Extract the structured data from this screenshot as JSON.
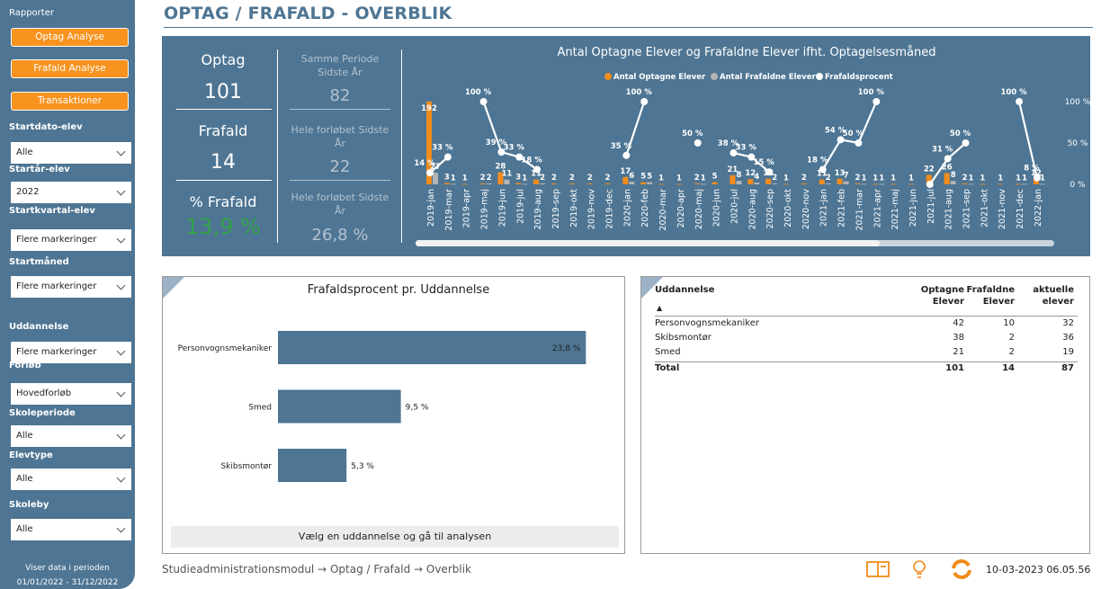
{
  "sidebar": {
    "heading": "Rapporter",
    "buttons": [
      "Optag Analyse",
      "Frafald Analyse",
      "Transaktioner"
    ],
    "filters": [
      {
        "label": "Startdato-elev",
        "value": "Alle"
      },
      {
        "label": "Startår-elev",
        "value": "2022"
      },
      {
        "label": "Startkvartal-elev",
        "value": "Flere markeringer"
      },
      {
        "label": "Startmåned",
        "value": "Flere markeringer"
      },
      {
        "label": "Uddannelse",
        "value": "Flere markeringer"
      },
      {
        "label": "Forløb",
        "value": "Hovedforløb"
      },
      {
        "label": "Skoleperiode",
        "value": "Alle"
      },
      {
        "label": "Elevtype",
        "value": "Alle"
      },
      {
        "label": "Skoleby",
        "value": "Alle"
      }
    ],
    "period_label": "Viser data i perioden",
    "period": "01/01/2022 - 31/12/2022"
  },
  "header": {
    "title": "OPTAG / FRAFALD - OVERBLIK"
  },
  "kpis": [
    {
      "label": "Optag",
      "value": 101
    },
    {
      "label": "Frafald",
      "value": 14
    },
    {
      "label": "% Frafald",
      "value": 13.9,
      "value_label": "13,9 %"
    }
  ],
  "comparisons": [
    {
      "label": "Samme Periode Sidste År",
      "value": 82
    },
    {
      "label": "Hele forløbet Sidste År",
      "value": 22
    },
    {
      "label": "Hele forløbet Sidste År",
      "value": 26.8,
      "value_label": "26,8 %"
    }
  ],
  "chart_data": [
    {
      "type": "combo",
      "title": "Antal Optagne Elever og Frafaldne Elever ifht. Optagelsesmåned",
      "categories": [
        "2019-jan",
        "2019-mar",
        "2019-apr",
        "2019-maj",
        "2019-jun",
        "2019-jul",
        "2019-aug",
        "2019-sep",
        "2019-okt",
        "2019-nov",
        "2019-dec",
        "2020-jan",
        "2020-feb",
        "2020-mar",
        "2020-apr",
        "2020-maj",
        "2020-jun",
        "2020-jul",
        "2020-aug",
        "2020-sep",
        "2020-okt",
        "2020-nov",
        "2021-jan",
        "2021-feb",
        "2021-mar",
        "2021-apr",
        "2021-maj",
        "2021-jun",
        "2021-jul",
        "2021-aug",
        "2021-sep",
        "2021-okt",
        "2021-nov",
        "2021-dec",
        "2022-jan"
      ],
      "series": [
        {
          "name": "Antal Optagne Elever",
          "color": "#f28c1c",
          "values": [
            192,
            3,
            1,
            2,
            28,
            3,
            11,
            2,
            2,
            2,
            2,
            17,
            5,
            1,
            1,
            2,
            5,
            21,
            12,
            13,
            1,
            2,
            11,
            13,
            2,
            1,
            1,
            1,
            22,
            26,
            2,
            1,
            1,
            1,
            12
          ]
        },
        {
          "name": "Antal Frafaldne Elever",
          "color": "#b4b4b4",
          "values": [
            27,
            1,
            null,
            2,
            11,
            1,
            2,
            null,
            null,
            null,
            null,
            6,
            5,
            null,
            null,
            1,
            null,
            8,
            4,
            2,
            null,
            null,
            2,
            7,
            1,
            1,
            null,
            null,
            null,
            8,
            1,
            null,
            null,
            1,
            1
          ]
        },
        {
          "name": "Frafaldsprocent",
          "color": "#ffffff",
          "axis": "y2",
          "values": [
            14,
            33,
            null,
            100,
            39,
            33,
            18,
            null,
            null,
            null,
            null,
            35,
            100,
            null,
            null,
            50,
            null,
            38,
            33,
            15,
            null,
            null,
            18,
            54,
            50,
            100,
            null,
            null,
            0,
            31,
            50,
            null,
            null,
            100,
            8
          ],
          "value_labels": [
            "14 %",
            "33 %",
            null,
            "100 %",
            "39 %",
            "33 %",
            "18 %",
            null,
            null,
            null,
            null,
            "35 %",
            "100 %",
            null,
            null,
            "50 %",
            null,
            "38 %",
            "33 %",
            "15 %",
            null,
            null,
            "18 %",
            "54 %",
            "50 %",
            "100 %",
            null,
            null,
            null,
            "31 %",
            "50 %",
            null,
            null,
            "100 %",
            "8 %"
          ]
        }
      ],
      "ylim": [
        0,
        200
      ],
      "y2lim": [
        0,
        100
      ],
      "y2ticks": [
        {
          "value": 0,
          "label": "0 %"
        },
        {
          "value": 50,
          "label": "50 %"
        },
        {
          "value": 100,
          "label": "100 %"
        }
      ]
    },
    {
      "type": "barh",
      "title": "Frafaldsprocent pr. Uddannelse",
      "categories": [
        "Personvognsmekaniker",
        "Smed",
        "Skibsmontør"
      ],
      "values": [
        23.8,
        9.5,
        5.3
      ],
      "value_labels": [
        "23,8 %",
        "9,5 %",
        "5,3 %"
      ],
      "color": "#4e7593",
      "xlim": [
        0,
        26
      ]
    }
  ],
  "bar_panel_button": "Vælg en uddannelse og gå til analysen",
  "table": {
    "columns": [
      "Uddannelse",
      "Optagne Elever",
      "Frafaldne Elever",
      "aktuelle elever"
    ],
    "rows": [
      [
        "Personvognsmekaniker",
        42,
        10,
        32
      ],
      [
        "Skibsmontør",
        38,
        2,
        36
      ],
      [
        "Smed",
        21,
        2,
        19
      ]
    ],
    "total": [
      "Total",
      101,
      14,
      87
    ]
  },
  "footer": {
    "breadcrumb": "Studieadministrationsmodul → Optag / Frafald → Overblik",
    "timestamp": "10-03-2023 06.05.56"
  }
}
